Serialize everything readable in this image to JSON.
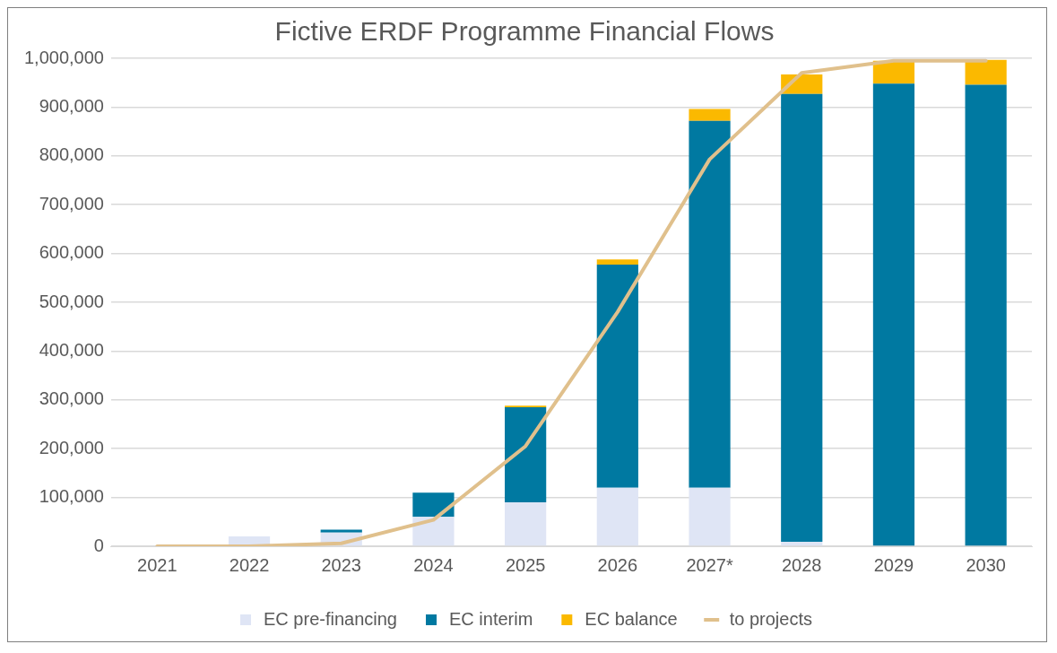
{
  "chart_data": {
    "type": "bar",
    "title": "Fictive ERDF Programme Financial Flows",
    "stacked": true,
    "categories": [
      "2021",
      "2022",
      "2023",
      "2024",
      "2025",
      "2026",
      "2027*",
      "2028",
      "2029",
      "2030"
    ],
    "series": [
      {
        "name": "EC pre-financing",
        "color": "#dfe5f5",
        "values": [
          0,
          20000,
          28000,
          60000,
          90000,
          120000,
          120000,
          9000,
          0,
          0
        ]
      },
      {
        "name": "EC interim",
        "color": "#0079a1",
        "values": [
          0,
          0,
          6000,
          50000,
          195000,
          457000,
          752000,
          918000,
          948000,
          946000
        ]
      },
      {
        "name": "EC balance",
        "color": "#fbb900",
        "values": [
          0,
          0,
          0,
          0,
          3000,
          11000,
          24000,
          40000,
          47000,
          51000
        ]
      },
      {
        "name": "to projects",
        "type": "line",
        "color": "#e0c08c",
        "values": [
          0,
          0,
          6000,
          54000,
          205000,
          480000,
          793000,
          970000,
          995000,
          995000
        ]
      }
    ],
    "ylim": [
      0,
      1000000
    ],
    "yticks": [
      0,
      {
        "value": 100000,
        "label": "100,000"
      },
      {
        "value": 200000,
        "label": "200,000"
      },
      {
        "value": 300000,
        "label": "300,000"
      },
      {
        "value": 400000,
        "label": "400,000"
      },
      {
        "value": 500000,
        "label": "500,000"
      },
      {
        "value": 600000,
        "label": "600,000"
      },
      {
        "value": 700000,
        "label": "700,000"
      },
      {
        "value": 800000,
        "label": "800,000"
      },
      {
        "value": 900000,
        "label": "900,000"
      },
      {
        "value": 1000000,
        "label": "1,000,000"
      }
    ],
    "grid": "y",
    "legend": "bottom",
    "marker": "none"
  }
}
